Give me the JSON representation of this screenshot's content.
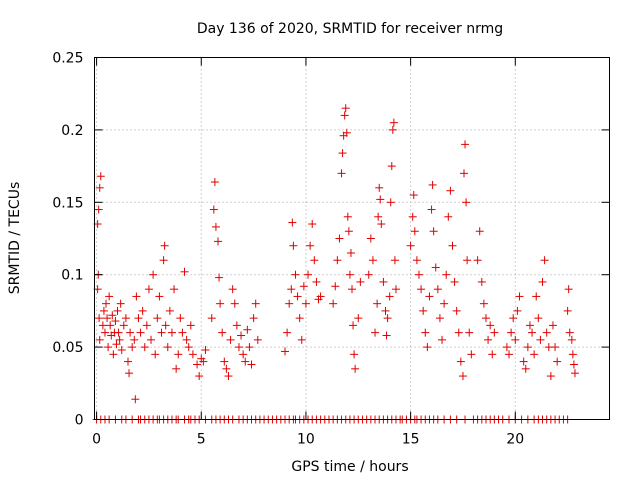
{
  "chart_data": {
    "type": "scatter",
    "title": "Day 136 of 2020, SRMTID for receiver nrmg",
    "xlabel": "GPS time / hours",
    "ylabel": "SRMTID / TECUs",
    "xlim": [
      -0.1,
      24.5
    ],
    "ylim": [
      0,
      0.25
    ],
    "xticks": [
      0,
      5,
      10,
      15,
      20
    ],
    "xtick_labels": [
      "0",
      "5",
      "10",
      "15",
      "20"
    ],
    "yticks": [
      0,
      0.05,
      0.1,
      0.15,
      0.2,
      0.25
    ],
    "ytick_labels": [
      "0",
      "0.05",
      "0.1",
      "0.15",
      "0.2",
      "0.25"
    ],
    "grid": true,
    "marker": "+",
    "color": "#e00000",
    "series": [
      {
        "name": "SRMTID",
        "points": [
          [
            0.05,
            0.135
          ],
          [
            0.1,
            0.145
          ],
          [
            0.15,
            0.16
          ],
          [
            0.2,
            0.168
          ],
          [
            0.08,
            0.1
          ],
          [
            0.12,
            0.07
          ],
          [
            0.05,
            0.09
          ],
          [
            0.15,
            0.055
          ],
          [
            0.3,
            0.065
          ],
          [
            0.35,
            0.075
          ],
          [
            0.4,
            0.06
          ],
          [
            0.45,
            0.08
          ],
          [
            0.5,
            0.07
          ],
          [
            0.55,
            0.05
          ],
          [
            0.6,
            0.085
          ],
          [
            0.65,
            0.065
          ],
          [
            0.7,
            0.058
          ],
          [
            0.75,
            0.072
          ],
          [
            0.8,
            0.045
          ],
          [
            0.85,
            0.06
          ],
          [
            0.9,
            0.068
          ],
          [
            0.95,
            0.052
          ],
          [
            1.0,
            0.075
          ],
          [
            1.05,
            0.06
          ],
          [
            1.1,
            0.055
          ],
          [
            1.15,
            0.08
          ],
          [
            1.2,
            0.048
          ],
          [
            1.3,
            0.065
          ],
          [
            1.4,
            0.07
          ],
          [
            1.5,
            0.04
          ],
          [
            1.55,
            0.032
          ],
          [
            1.6,
            0.06
          ],
          [
            1.7,
            0.05
          ],
          [
            1.8,
            0.055
          ],
          [
            1.85,
            0.014
          ],
          [
            1.9,
            0.085
          ],
          [
            2.0,
            0.07
          ],
          [
            2.1,
            0.06
          ],
          [
            2.2,
            0.075
          ],
          [
            2.3,
            0.05
          ],
          [
            2.4,
            0.065
          ],
          [
            2.5,
            0.09
          ],
          [
            2.6,
            0.055
          ],
          [
            2.7,
            0.1
          ],
          [
            2.8,
            0.045
          ],
          [
            2.9,
            0.07
          ],
          [
            3.0,
            0.085
          ],
          [
            3.1,
            0.06
          ],
          [
            3.2,
            0.11
          ],
          [
            3.25,
            0.12
          ],
          [
            3.3,
            0.065
          ],
          [
            3.4,
            0.05
          ],
          [
            3.5,
            0.075
          ],
          [
            3.6,
            0.06
          ],
          [
            3.7,
            0.09
          ],
          [
            3.8,
            0.035
          ],
          [
            3.9,
            0.045
          ],
          [
            4.0,
            0.07
          ],
          [
            4.1,
            0.06
          ],
          [
            4.2,
            0.102
          ],
          [
            4.3,
            0.055
          ],
          [
            4.4,
            0.05
          ],
          [
            4.5,
            0.065
          ],
          [
            4.6,
            0.045
          ],
          [
            4.8,
            0.038
          ],
          [
            4.9,
            0.03
          ],
          [
            5.0,
            0.042
          ],
          [
            5.1,
            0.04
          ],
          [
            5.2,
            0.048
          ],
          [
            5.5,
            0.07
          ],
          [
            5.6,
            0.145
          ],
          [
            5.65,
            0.164
          ],
          [
            5.7,
            0.133
          ],
          [
            5.8,
            0.123
          ],
          [
            5.85,
            0.098
          ],
          [
            5.9,
            0.08
          ],
          [
            6.0,
            0.06
          ],
          [
            6.1,
            0.04
          ],
          [
            6.2,
            0.035
          ],
          [
            6.3,
            0.03
          ],
          [
            6.4,
            0.055
          ],
          [
            6.5,
            0.09
          ],
          [
            6.6,
            0.08
          ],
          [
            6.7,
            0.065
          ],
          [
            6.8,
            0.05
          ],
          [
            6.9,
            0.058
          ],
          [
            7.0,
            0.045
          ],
          [
            7.1,
            0.04
          ],
          [
            7.2,
            0.062
          ],
          [
            7.3,
            0.05
          ],
          [
            7.4,
            0.038
          ],
          [
            7.5,
            0.07
          ],
          [
            7.6,
            0.08
          ],
          [
            7.7,
            0.055
          ],
          [
            9.0,
            0.047
          ],
          [
            9.1,
            0.06
          ],
          [
            9.2,
            0.08
          ],
          [
            9.3,
            0.09
          ],
          [
            9.35,
            0.136
          ],
          [
            9.4,
            0.12
          ],
          [
            9.5,
            0.1
          ],
          [
            9.6,
            0.085
          ],
          [
            9.7,
            0.07
          ],
          [
            9.8,
            0.055
          ],
          [
            9.9,
            0.092
          ],
          [
            10.0,
            0.08
          ],
          [
            10.1,
            0.1
          ],
          [
            10.2,
            0.12
          ],
          [
            10.3,
            0.135
          ],
          [
            10.4,
            0.11
          ],
          [
            10.5,
            0.095
          ],
          [
            10.6,
            0.083
          ],
          [
            10.7,
            0.085
          ],
          [
            11.3,
            0.08
          ],
          [
            11.4,
            0.092
          ],
          [
            11.5,
            0.11
          ],
          [
            11.6,
            0.125
          ],
          [
            11.7,
            0.17
          ],
          [
            11.75,
            0.184
          ],
          [
            11.8,
            0.196
          ],
          [
            11.85,
            0.21
          ],
          [
            11.9,
            0.215
          ],
          [
            11.95,
            0.198
          ],
          [
            12.0,
            0.14
          ],
          [
            12.05,
            0.13
          ],
          [
            12.1,
            0.1
          ],
          [
            12.15,
            0.115
          ],
          [
            12.2,
            0.09
          ],
          [
            12.25,
            0.065
          ],
          [
            12.3,
            0.045
          ],
          [
            12.35,
            0.035
          ],
          [
            12.5,
            0.07
          ],
          [
            12.6,
            0.095
          ],
          [
            13.0,
            0.1
          ],
          [
            13.1,
            0.125
          ],
          [
            13.2,
            0.11
          ],
          [
            13.3,
            0.06
          ],
          [
            13.4,
            0.08
          ],
          [
            13.45,
            0.14
          ],
          [
            13.5,
            0.16
          ],
          [
            13.55,
            0.152
          ],
          [
            13.6,
            0.135
          ],
          [
            13.7,
            0.095
          ],
          [
            13.8,
            0.075
          ],
          [
            13.85,
            0.058
          ],
          [
            13.9,
            0.07
          ],
          [
            14.0,
            0.085
          ],
          [
            14.05,
            0.15
          ],
          [
            14.1,
            0.175
          ],
          [
            14.15,
            0.2
          ],
          [
            14.2,
            0.205
          ],
          [
            14.25,
            0.11
          ],
          [
            14.3,
            0.09
          ],
          [
            15.0,
            0.12
          ],
          [
            15.1,
            0.14
          ],
          [
            15.15,
            0.155
          ],
          [
            15.2,
            0.13
          ],
          [
            15.3,
            0.11
          ],
          [
            15.4,
            0.1
          ],
          [
            15.5,
            0.09
          ],
          [
            15.6,
            0.075
          ],
          [
            15.7,
            0.06
          ],
          [
            15.8,
            0.05
          ],
          [
            15.9,
            0.085
          ],
          [
            16.0,
            0.145
          ],
          [
            16.05,
            0.162
          ],
          [
            16.1,
            0.13
          ],
          [
            16.2,
            0.105
          ],
          [
            16.3,
            0.09
          ],
          [
            16.4,
            0.07
          ],
          [
            16.5,
            0.055
          ],
          [
            16.6,
            0.08
          ],
          [
            16.7,
            0.1
          ],
          [
            16.8,
            0.14
          ],
          [
            16.9,
            0.158
          ],
          [
            17.0,
            0.12
          ],
          [
            17.1,
            0.095
          ],
          [
            17.2,
            0.075
          ],
          [
            17.3,
            0.06
          ],
          [
            17.4,
            0.04
          ],
          [
            17.5,
            0.03
          ],
          [
            17.55,
            0.17
          ],
          [
            17.6,
            0.19
          ],
          [
            17.65,
            0.15
          ],
          [
            17.7,
            0.11
          ],
          [
            17.8,
            0.06
          ],
          [
            17.9,
            0.045
          ],
          [
            18.2,
            0.11
          ],
          [
            18.3,
            0.13
          ],
          [
            18.4,
            0.095
          ],
          [
            18.5,
            0.08
          ],
          [
            18.6,
            0.07
          ],
          [
            18.7,
            0.055
          ],
          [
            18.8,
            0.065
          ],
          [
            18.9,
            0.045
          ],
          [
            19.0,
            0.06
          ],
          [
            19.6,
            0.05
          ],
          [
            19.7,
            0.045
          ],
          [
            19.8,
            0.06
          ],
          [
            19.9,
            0.07
          ],
          [
            20.0,
            0.055
          ],
          [
            20.1,
            0.075
          ],
          [
            20.2,
            0.085
          ],
          [
            20.4,
            0.04
          ],
          [
            20.5,
            0.035
          ],
          [
            20.6,
            0.05
          ],
          [
            20.7,
            0.065
          ],
          [
            20.8,
            0.06
          ],
          [
            20.9,
            0.045
          ],
          [
            21.0,
            0.085
          ],
          [
            21.1,
            0.07
          ],
          [
            21.2,
            0.055
          ],
          [
            21.3,
            0.095
          ],
          [
            21.4,
            0.11
          ],
          [
            21.5,
            0.06
          ],
          [
            21.6,
            0.05
          ],
          [
            21.7,
            0.03
          ],
          [
            21.8,
            0.065
          ],
          [
            21.9,
            0.05
          ],
          [
            22.0,
            0.04
          ],
          [
            22.5,
            0.075
          ],
          [
            22.55,
            0.09
          ],
          [
            22.6,
            0.06
          ],
          [
            22.7,
            0.055
          ],
          [
            22.75,
            0.045
          ],
          [
            22.8,
            0.038
          ],
          [
            22.85,
            0.032
          ]
        ]
      }
    ],
    "zero_markers_x": [
      0.0,
      0.2,
      0.4,
      0.6,
      0.9,
      1.2,
      1.4,
      1.7,
      2.0,
      2.1,
      2.3,
      2.5,
      2.7,
      2.9,
      3.0,
      3.2,
      3.4,
      3.6,
      3.8,
      3.9,
      4.2,
      4.4,
      4.5,
      4.7,
      4.9,
      5.2,
      5.5,
      5.7,
      5.9,
      6.1,
      6.3,
      6.5,
      6.8,
      7.0,
      7.2,
      7.4,
      7.6,
      7.8,
      8.0,
      8.2,
      8.4,
      8.6,
      8.8,
      9.0,
      9.2,
      9.4,
      9.5,
      9.7,
      9.9,
      10.1,
      10.3,
      10.5,
      10.7,
      10.9,
      11.1,
      11.3,
      11.5,
      11.7,
      11.9,
      12.1,
      12.3,
      12.5,
      12.7,
      12.9,
      13.1,
      13.3,
      13.5,
      13.7,
      13.9,
      14.1,
      14.3,
      14.5,
      14.6,
      14.8,
      15.0,
      15.2,
      15.3,
      15.5,
      15.7,
      15.9,
      16.1,
      16.3,
      16.6,
      16.9,
      17.2,
      17.6,
      18.0,
      18.2,
      18.4,
      18.6,
      18.8,
      19.0,
      19.2,
      19.4,
      19.7,
      20.0,
      20.3,
      20.6,
      20.9,
      21.1,
      21.3,
      21.5,
      21.7,
      21.9,
      22.1,
      22.3,
      22.5
    ]
  }
}
